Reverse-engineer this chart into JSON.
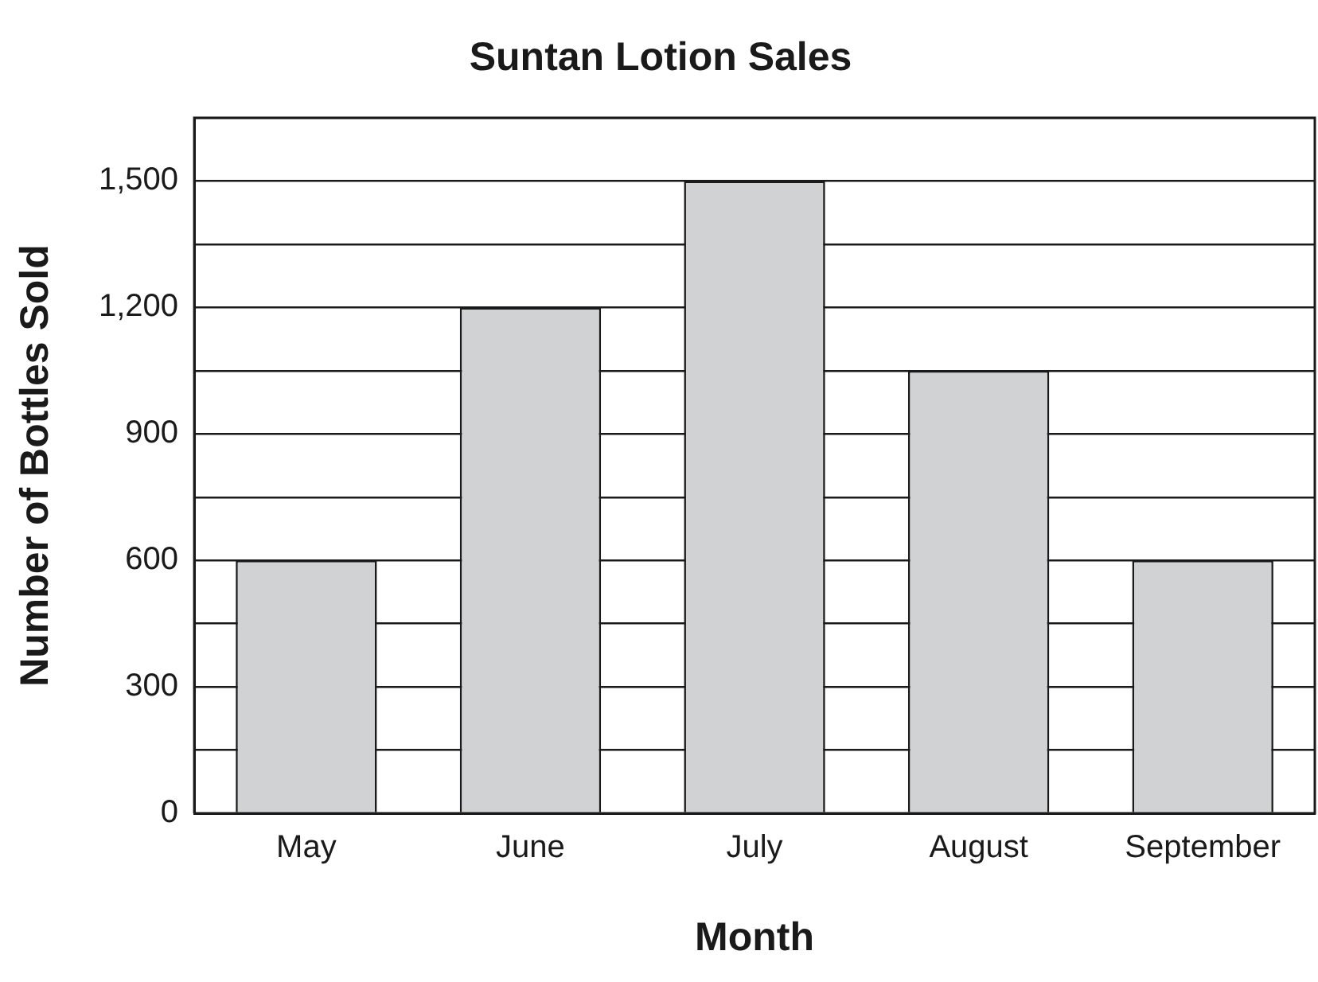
{
  "chart_data": {
    "type": "bar",
    "title": "Suntan Lotion Sales",
    "xlabel": "Month",
    "ylabel": "Number of Bottles Sold",
    "categories": [
      "May",
      "June",
      "July",
      "August",
      "September"
    ],
    "values": [
      600,
      1200,
      1500,
      1050,
      600
    ],
    "color": "#d1d2d4",
    "ylim": [
      0,
      1650
    ],
    "yticks": [
      0,
      {
        "value": 150,
        "label": null
      },
      "300",
      {
        "value": 450,
        "label": null
      },
      600,
      {
        "value": 750,
        "label": null
      },
      900,
      {
        "value": 1050,
        "label": null
      },
      {
        "value": 1200,
        "label": "1,200"
      },
      {
        "value": 1350,
        "label": null
      },
      {
        "value": 1500,
        "label": "1,500"
      },
      {
        "value": 1650,
        "label": null
      }
    ],
    "grid": "y",
    "legend": false
  }
}
